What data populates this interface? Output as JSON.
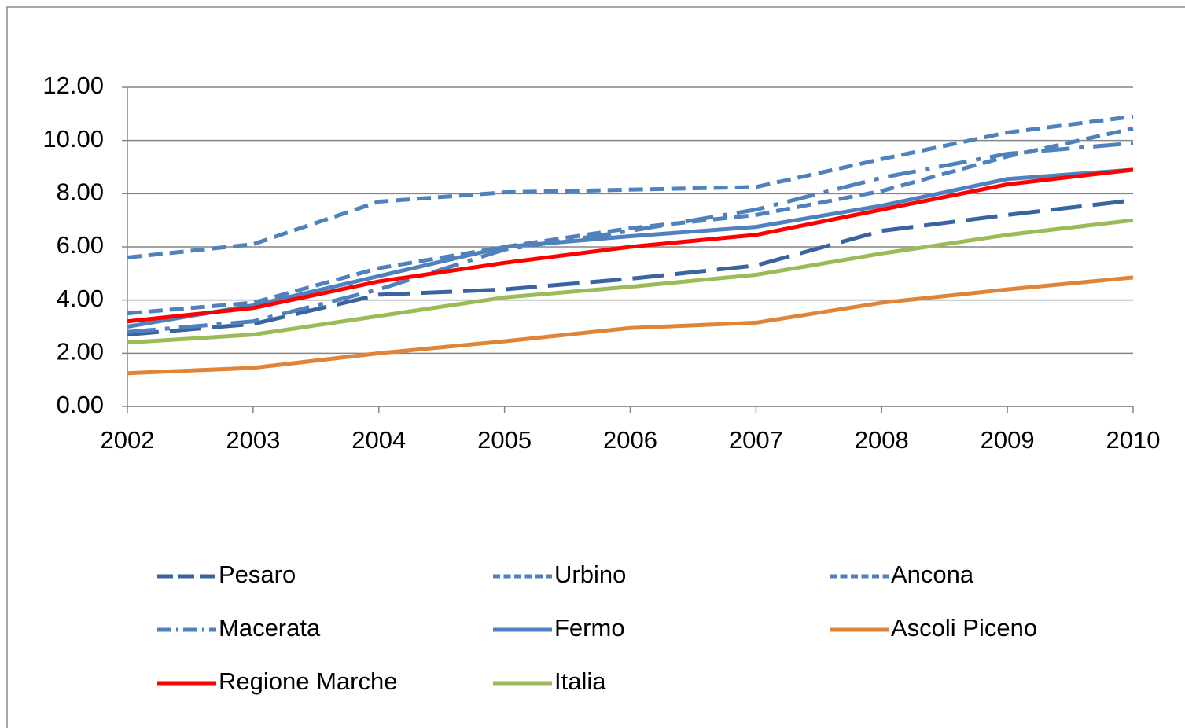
{
  "chart_data": {
    "type": "line",
    "categories": [
      "2002",
      "2003",
      "2004",
      "2005",
      "2006",
      "2007",
      "2008",
      "2009",
      "2010"
    ],
    "ylim": [
      0,
      12
    ],
    "yticks": [
      {
        "value": 0,
        "label": "0.00"
      },
      {
        "value": 2,
        "label": "2.00"
      },
      {
        "value": 4,
        "label": "4.00"
      },
      {
        "value": 6,
        "label": "6.00"
      },
      {
        "value": 8,
        "label": "8.00"
      },
      {
        "value": 10,
        "label": "10.00"
      },
      {
        "value": 12,
        "label": "12.00"
      }
    ],
    "grid": true,
    "legend": "bottom",
    "series": [
      {
        "name": "Pesaro",
        "color": "#3a64a0",
        "dash": "longdash",
        "values": [
          2.7,
          3.1,
          4.2,
          4.4,
          4.8,
          5.3,
          6.6,
          7.2,
          7.75
        ]
      },
      {
        "name": "Urbino",
        "color": "#4f81bd",
        "dash": "dash",
        "values": [
          5.6,
          6.1,
          7.7,
          8.05,
          8.15,
          8.25,
          9.3,
          10.3,
          10.9
        ]
      },
      {
        "name": "Ancona",
        "color": "#4f81bd",
        "dash": "dash",
        "values": [
          3.5,
          3.9,
          5.2,
          6.0,
          6.7,
          7.2,
          8.1,
          9.4,
          10.45
        ]
      },
      {
        "name": "Macerata",
        "color": "#4f81bd",
        "dash": "dashdot",
        "values": [
          2.8,
          3.2,
          4.4,
          5.9,
          6.6,
          7.4,
          8.6,
          9.5,
          9.9
        ]
      },
      {
        "name": "Fermo",
        "color": "#4f81bd",
        "dash": "solid",
        "values": [
          3.0,
          3.8,
          4.9,
          6.0,
          6.4,
          6.75,
          7.55,
          8.55,
          8.9
        ]
      },
      {
        "name": "Ascoli Piceno",
        "color": "#e0843a",
        "dash": "solid",
        "values": [
          1.25,
          1.45,
          2.0,
          2.45,
          2.95,
          3.15,
          3.9,
          4.4,
          4.85
        ]
      },
      {
        "name": "Regione Marche",
        "color": "#ff0000",
        "dash": "solid",
        "values": [
          3.2,
          3.7,
          4.7,
          5.4,
          6.0,
          6.45,
          7.4,
          8.35,
          8.9
        ]
      },
      {
        "name": "Italia",
        "color": "#9bbb59",
        "dash": "solid",
        "values": [
          2.4,
          2.7,
          3.4,
          4.1,
          4.5,
          4.95,
          5.75,
          6.45,
          7.0
        ]
      }
    ]
  }
}
